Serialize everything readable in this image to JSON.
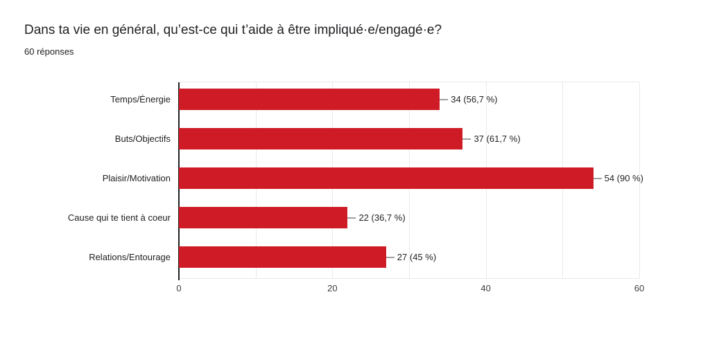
{
  "header": {
    "title": "Dans ta vie en général, qu’est-ce qui t’aide à être impliqué·e/engagé·e?",
    "subtitle": "60 réponses"
  },
  "chart_data": {
    "type": "bar",
    "orientation": "horizontal",
    "title": "Dans ta vie en général, qu’est-ce qui t’aide à être impliqué·e/engagé·e?",
    "subtitle": "60 réponses",
    "total_responses": 60,
    "categories": [
      "Temps/Énergie",
      "Buts/Objectifs",
      "Plaisir/Motivation",
      "Cause qui te tient à coeur",
      "Relations/Entourage"
    ],
    "values": [
      34,
      37,
      54,
      22,
      27
    ],
    "percentages": [
      56.7,
      61.7,
      90,
      36.7,
      45
    ],
    "value_labels": [
      "34 (56,7 %)",
      "37 (61,7 %)",
      "54 (90 %)",
      "22 (36,7 %)",
      "27 (45 %)"
    ],
    "xlabel": "",
    "ylabel": "",
    "xlim": [
      0,
      60
    ],
    "x_ticks": [
      0,
      20,
      40,
      60
    ],
    "x_tick_labels": [
      "0",
      "20",
      "40",
      "60"
    ],
    "gridline_step": 10,
    "grid": true,
    "legend": "none"
  },
  "colors": {
    "bar": "#ce1b26",
    "gridline": "#e9e9e9",
    "axis_line": "#212121",
    "title_text": "#202124",
    "label_text": "#212121",
    "tick_text": "#3c4043",
    "connector": "#9e9e9e",
    "background": "#ffffff"
  }
}
